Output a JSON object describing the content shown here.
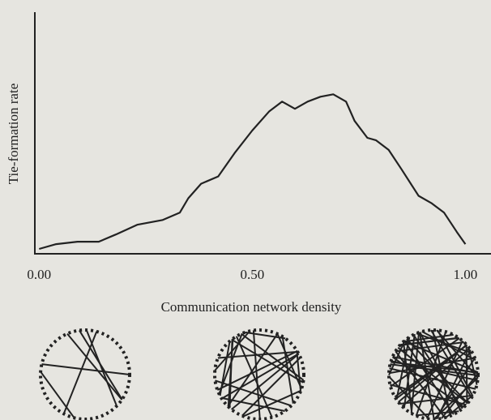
{
  "chart_data": {
    "type": "line",
    "x_label": "Communication network density",
    "y_label": "Tie-formation rate",
    "x": [
      0.0,
      0.04,
      0.09,
      0.14,
      0.18,
      0.23,
      0.29,
      0.33,
      0.35,
      0.38,
      0.42,
      0.46,
      0.5,
      0.54,
      0.57,
      0.6,
      0.63,
      0.66,
      0.69,
      0.72,
      0.74,
      0.77,
      0.79,
      0.82,
      0.85,
      0.89,
      0.92,
      0.95,
      0.98,
      1.0
    ],
    "values": [
      0.02,
      0.04,
      0.05,
      0.05,
      0.08,
      0.12,
      0.14,
      0.17,
      0.23,
      0.29,
      0.32,
      0.42,
      0.51,
      0.59,
      0.63,
      0.6,
      0.63,
      0.65,
      0.66,
      0.63,
      0.55,
      0.48,
      0.47,
      0.43,
      0.35,
      0.24,
      0.21,
      0.17,
      0.09,
      0.04
    ],
    "color": "#222222",
    "xlim": [
      -0.01,
      1.06
    ],
    "ylim": [
      0,
      1
    ],
    "xticks": [
      {
        "value": 0,
        "label": "0.00"
      },
      {
        "value": 0.5,
        "label": "0.50"
      },
      {
        "value": 1,
        "label": "1.00"
      }
    ]
  }
}
